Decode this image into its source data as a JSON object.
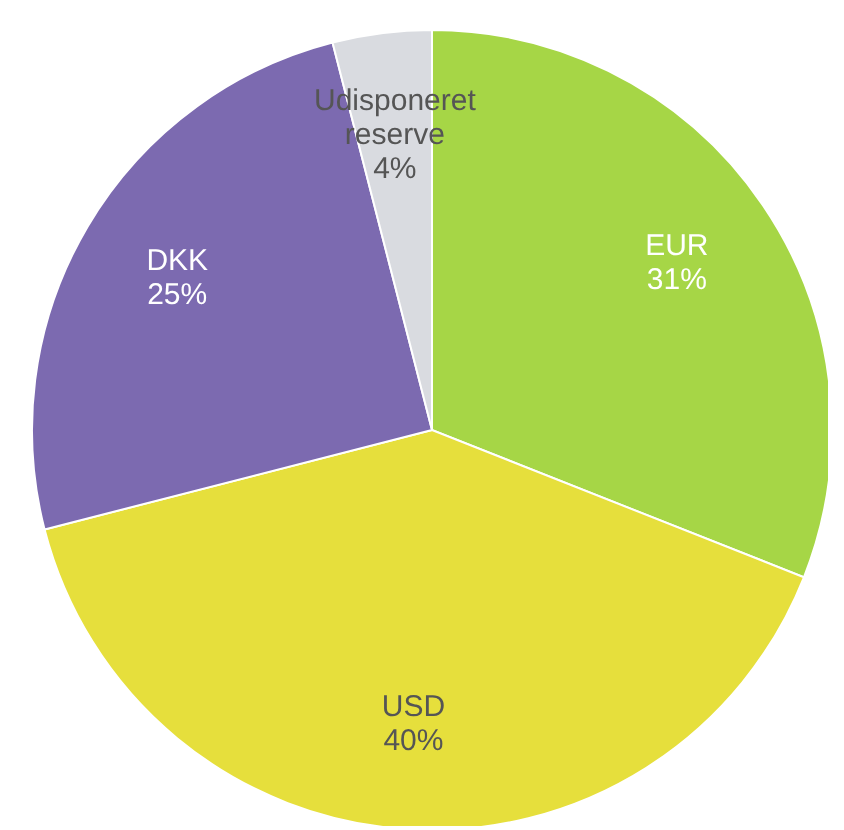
{
  "chart_data": {
    "type": "pie",
    "categories": [
      "EUR",
      "USD",
      "DKK",
      "Udisponeret reserve"
    ],
    "values": [
      31,
      40,
      25,
      4
    ],
    "value_labels": [
      "31%",
      "40%",
      "25%",
      "4%"
    ],
    "colors": [
      "#a6d646",
      "#e6df3c",
      "#7c6ab0",
      "#d9dbe0"
    ],
    "legend": false
  }
}
